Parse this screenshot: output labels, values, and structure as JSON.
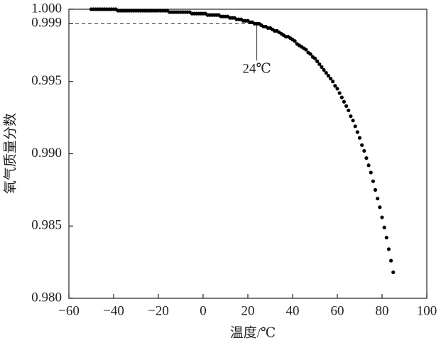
{
  "chart_data": {
    "type": "scatter",
    "xlabel": "温度/℃",
    "ylabel": "氧气质量分数",
    "color": "#000000",
    "x": [
      -50,
      -49,
      -48,
      -47,
      -46,
      -45,
      -44,
      -43,
      -42,
      -41,
      -40,
      -39,
      -38,
      -37,
      -36,
      -35,
      -34,
      -33,
      -32,
      -31,
      -30,
      -29,
      -28,
      -27,
      -26,
      -25,
      -24,
      -23,
      -22,
      -21,
      -20,
      -19,
      -18,
      -17,
      -16,
      -15,
      -14,
      -13,
      -12,
      -11,
      -10,
      -9,
      -8,
      -7,
      -6,
      -5,
      -4,
      -3,
      -2,
      -1,
      0,
      1,
      2,
      3,
      4,
      5,
      6,
      7,
      8,
      9,
      10,
      11,
      12,
      13,
      14,
      15,
      16,
      17,
      18,
      19,
      20,
      21,
      22,
      23,
      24,
      25,
      26,
      27,
      28,
      29,
      30,
      31,
      32,
      33,
      34,
      35,
      36,
      37,
      38,
      39,
      40,
      41,
      42,
      43,
      44,
      45,
      46,
      47,
      48,
      49,
      50,
      51,
      52,
      53,
      54,
      55,
      56,
      57,
      58,
      59,
      60,
      61,
      62,
      63,
      64,
      65,
      66,
      67,
      68,
      69,
      70,
      71,
      72,
      73,
      74,
      75,
      76,
      77,
      78,
      79,
      80,
      81,
      82,
      83,
      84,
      85
    ],
    "values": [
      1,
      1,
      1,
      1,
      1,
      1,
      1,
      1,
      1,
      1,
      1,
      1,
      0.9999,
      0.9999,
      0.9999,
      0.9999,
      0.9999,
      0.9999,
      0.9999,
      0.9999,
      0.9999,
      0.9999,
      0.9999,
      0.9999,
      0.9999,
      0.9999,
      0.9999,
      0.9999,
      0.9999,
      0.9999,
      0.9999,
      0.9999,
      0.9999,
      0.9999,
      0.9999,
      0.9998,
      0.9998,
      0.9998,
      0.9998,
      0.9998,
      0.9998,
      0.9998,
      0.9998,
      0.9998,
      0.9998,
      0.9997,
      0.9997,
      0.9997,
      0.9997,
      0.9997,
      0.9997,
      0.9997,
      0.9996,
      0.9996,
      0.9996,
      0.9996,
      0.9996,
      0.9996,
      0.9995,
      0.9995,
      0.9995,
      0.9995,
      0.9994,
      0.9994,
      0.9994,
      0.9993,
      0.9993,
      0.9993,
      0.9992,
      0.9992,
      0.9992,
      0.9991,
      0.9991,
      0.999,
      0.999,
      0.999,
      0.9989,
      0.9988,
      0.9988,
      0.9987,
      0.9987,
      0.9986,
      0.9985,
      0.9985,
      0.9984,
      0.9983,
      0.9982,
      0.9981,
      0.9981,
      0.998,
      0.9979,
      0.9978,
      0.9976,
      0.9975,
      0.9974,
      0.9973,
      0.9972,
      0.997,
      0.9969,
      0.9967,
      0.9966,
      0.9964,
      0.9962,
      0.996,
      0.9958,
      0.9956,
      0.9954,
      0.9952,
      0.995,
      0.9947,
      0.9945,
      0.9942,
      0.9939,
      0.9936,
      0.9933,
      0.993,
      0.9926,
      0.9923,
      0.9919,
      0.9915,
      0.9911,
      0.9906,
      0.9902,
      0.9897,
      0.9892,
      0.9887,
      0.9881,
      0.9875,
      0.9869,
      0.9863,
      0.9856,
      0.9849,
      0.9842,
      0.9834,
      0.9826,
      0.9818
    ],
    "xlim": [
      -60,
      100
    ],
    "xticks": [
      {
        "value": -60,
        "label": "−60"
      },
      {
        "value": -40,
        "label": "−40"
      },
      {
        "value": -20,
        "label": "−20"
      },
      0,
      20,
      40,
      60,
      80,
      100
    ],
    "ylim": [
      0.98,
      1
    ],
    "yticks": [
      {
        "value": 0.98,
        "label": "0.980"
      },
      0.985,
      {
        "value": 0.99,
        "label": "0.990"
      },
      0.995,
      0.999,
      {
        "value": 1,
        "label": "1.000"
      }
    ],
    "annotation": {
      "text": "24℃",
      "x": 24,
      "y": 0.999
    }
  }
}
